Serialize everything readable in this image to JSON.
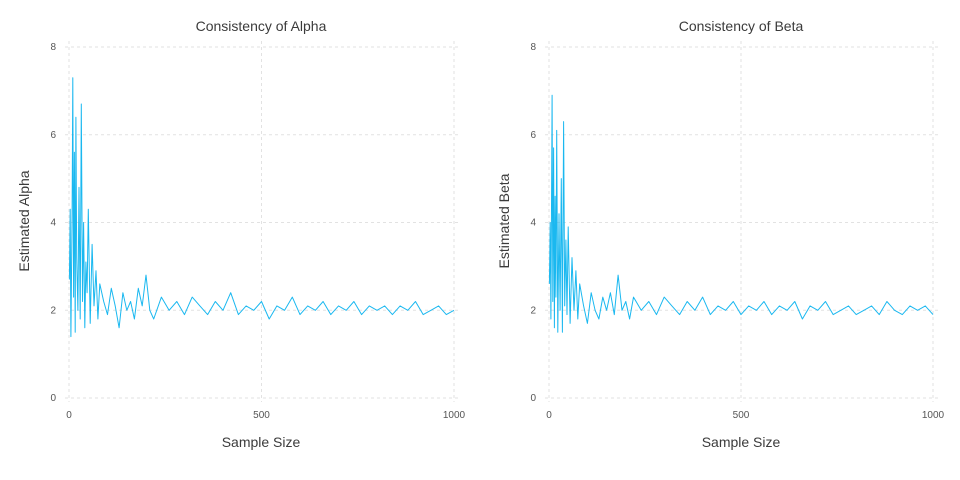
{
  "chart_data": [
    {
      "type": "line",
      "title": "Consistency of Alpha",
      "xlabel": "Sample Size",
      "ylabel": "Estimated Alpha",
      "xlim": [
        0,
        1000
      ],
      "ylim": [
        0,
        8
      ],
      "xticks": [
        0,
        500,
        1000
      ],
      "yticks": [
        0,
        2,
        4,
        6,
        8
      ],
      "grid": true,
      "color": "#1ab8f0",
      "series": [
        {
          "x": [
            1,
            3,
            5,
            8,
            10,
            12,
            14,
            16,
            18,
            20,
            23,
            26,
            29,
            32,
            35,
            38,
            41,
            44,
            47,
            50,
            55,
            60,
            65,
            70,
            75,
            80,
            90,
            100,
            110,
            120,
            130,
            140,
            150,
            160,
            170,
            180,
            190,
            200,
            210,
            220,
            240,
            260,
            280,
            300,
            320,
            340,
            360,
            380,
            400,
            420,
            440,
            460,
            480,
            500,
            520,
            540,
            560,
            580,
            600,
            620,
            640,
            660,
            680,
            700,
            720,
            740,
            760,
            780,
            800,
            820,
            840,
            860,
            880,
            900,
            920,
            940,
            960,
            980,
            1000
          ],
          "y": [
            2.7,
            4.3,
            1.4,
            4.2,
            7.3,
            2.3,
            5.6,
            1.5,
            6.4,
            3.2,
            2.0,
            4.8,
            1.8,
            6.7,
            2.2,
            4.0,
            1.6,
            3.1,
            2.4,
            4.3,
            1.7,
            3.5,
            2.1,
            2.9,
            1.8,
            2.6,
            2.2,
            1.9,
            2.5,
            2.1,
            1.6,
            2.4,
            2.0,
            2.2,
            1.8,
            2.5,
            2.1,
            2.8,
            2.0,
            1.8,
            2.3,
            2.0,
            2.2,
            1.9,
            2.3,
            2.1,
            1.9,
            2.2,
            2.0,
            2.4,
            1.9,
            2.1,
            2.0,
            2.2,
            1.8,
            2.1,
            2.0,
            2.3,
            1.9,
            2.1,
            2.0,
            2.2,
            1.9,
            2.1,
            2.0,
            2.2,
            1.9,
            2.1,
            2.0,
            2.1,
            1.9,
            2.1,
            2.0,
            2.2,
            1.9,
            2.0,
            2.1,
            1.9,
            2.0
          ]
        }
      ]
    },
    {
      "type": "line",
      "title": "Consistency of Beta",
      "xlabel": "Sample Size",
      "ylabel": "Estimated Beta",
      "xlim": [
        0,
        1000
      ],
      "ylim": [
        0,
        8
      ],
      "xticks": [
        0,
        500,
        1000
      ],
      "yticks": [
        0,
        2,
        4,
        6,
        8
      ],
      "grid": true,
      "color": "#1ab8f0",
      "series": [
        {
          "x": [
            1,
            3,
            5,
            8,
            10,
            12,
            14,
            16,
            18,
            20,
            23,
            26,
            29,
            32,
            35,
            38,
            41,
            44,
            47,
            50,
            55,
            60,
            65,
            70,
            75,
            80,
            90,
            100,
            110,
            120,
            130,
            140,
            150,
            160,
            170,
            180,
            190,
            200,
            210,
            220,
            240,
            260,
            280,
            300,
            320,
            340,
            360,
            380,
            400,
            420,
            440,
            460,
            480,
            500,
            520,
            540,
            560,
            580,
            600,
            620,
            640,
            660,
            680,
            700,
            720,
            740,
            760,
            780,
            800,
            820,
            840,
            860,
            880,
            900,
            920,
            940,
            960,
            980,
            1000
          ],
          "y": [
            2.6,
            4.0,
            1.8,
            6.9,
            2.2,
            5.7,
            1.6,
            4.6,
            2.3,
            6.1,
            1.5,
            4.2,
            2.0,
            5.0,
            1.5,
            6.3,
            2.1,
            3.6,
            1.9,
            3.9,
            1.7,
            3.2,
            2.0,
            2.9,
            1.8,
            2.6,
            2.1,
            1.7,
            2.4,
            2.0,
            1.8,
            2.3,
            2.0,
            2.4,
            1.9,
            2.8,
            2.0,
            2.2,
            1.8,
            2.3,
            2.0,
            2.2,
            1.9,
            2.3,
            2.1,
            1.9,
            2.2,
            2.0,
            2.3,
            1.9,
            2.1,
            2.0,
            2.2,
            1.9,
            2.1,
            2.0,
            2.2,
            1.9,
            2.1,
            2.0,
            2.2,
            1.8,
            2.1,
            2.0,
            2.2,
            1.9,
            2.0,
            2.1,
            1.9,
            2.0,
            2.1,
            1.9,
            2.2,
            2.0,
            1.9,
            2.1,
            2.0,
            2.1,
            1.9
          ]
        }
      ]
    }
  ]
}
